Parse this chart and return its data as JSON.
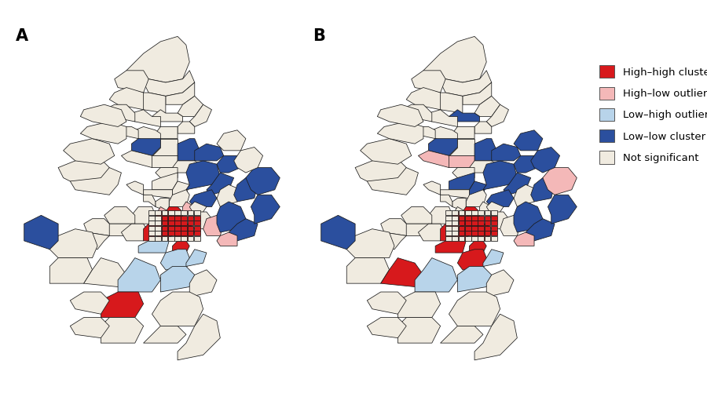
{
  "background_color": "#ffffff",
  "border_color": "#1a1a1a",
  "border_lw": 0.55,
  "label_fontsize": 15,
  "legend_fontsize": 9.5,
  "colors": {
    "high_high": "#d7191c",
    "high_low": "#f4b8b8",
    "low_high": "#b8d4ea",
    "low_low": "#2b4f9e",
    "not_sig": "#f0ebe0"
  },
  "legend_items": [
    {
      "label": "High–high cluster",
      "color": "#d7191c"
    },
    {
      "label": "High–low outlier",
      "color": "#f4b8b8"
    },
    {
      "label": "Low–high outlier",
      "color": "#b8d4ea"
    },
    {
      "label": "Low–low cluster",
      "color": "#2b4f9e"
    },
    {
      "label": "Not significant",
      "color": "#f0ebe0"
    }
  ]
}
